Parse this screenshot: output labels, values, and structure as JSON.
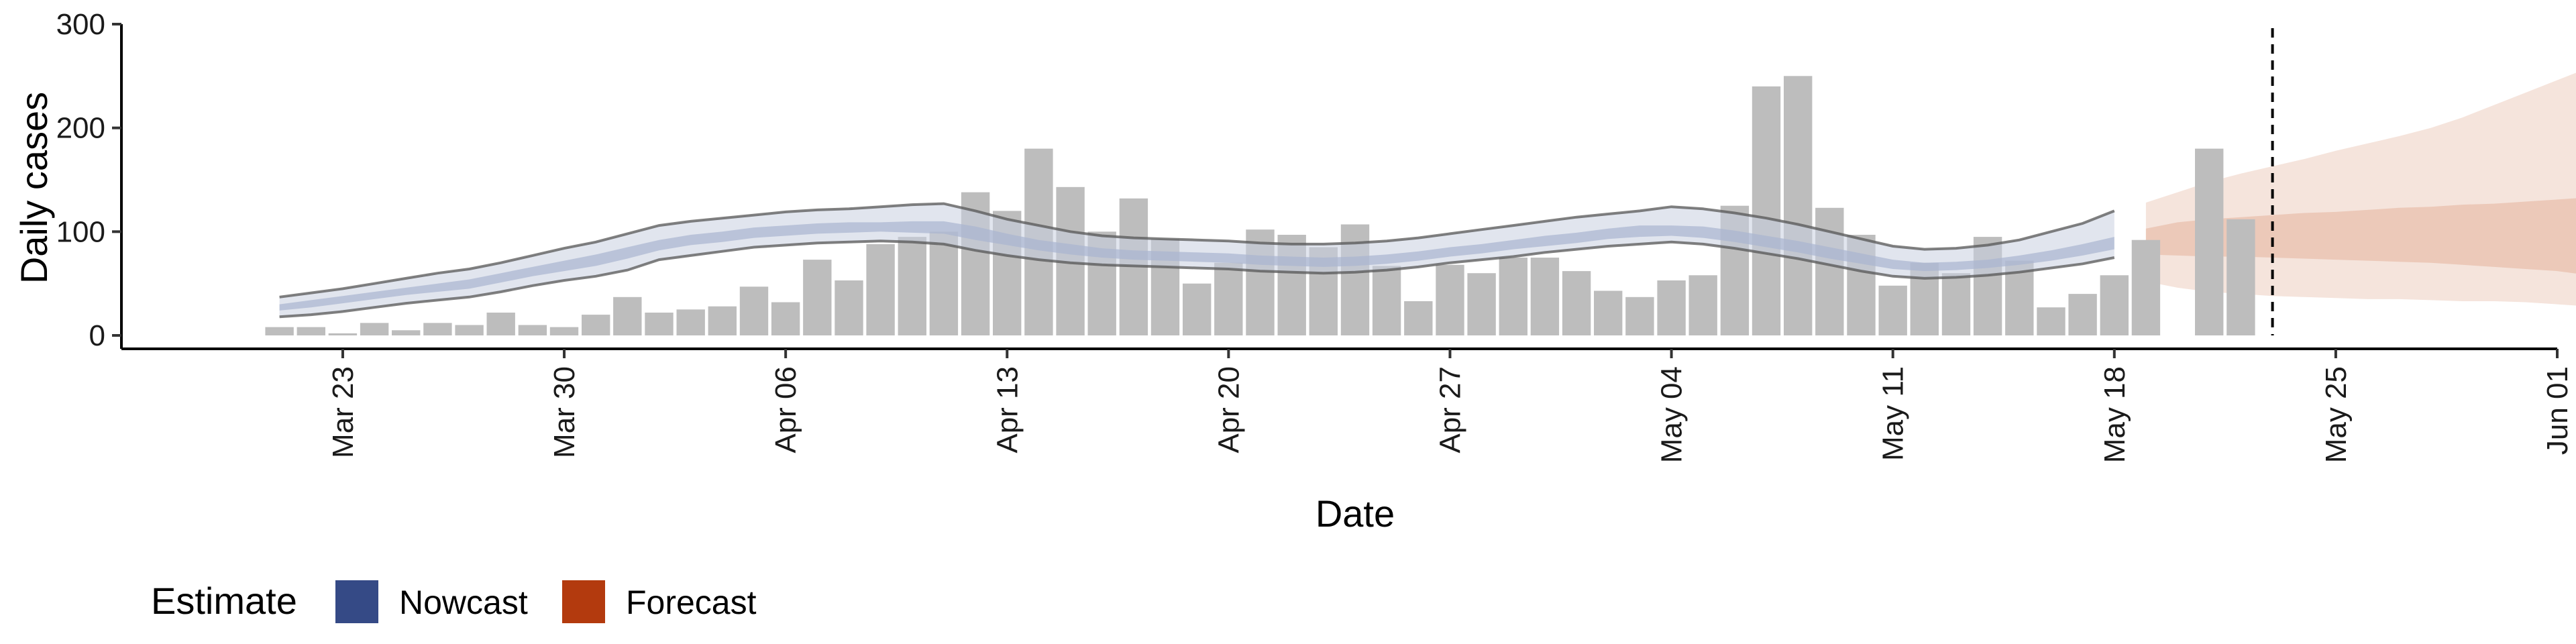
{
  "chart_data": {
    "type": "bar",
    "xlabel": "Date",
    "ylabel": "Daily cases",
    "ylim": [
      0,
      300
    ],
    "xlim": [
      "2020-03-17",
      "2020-06-01"
    ],
    "y_ticks": [
      0,
      100,
      200,
      300
    ],
    "x_ticks": [
      "Mar 23",
      "Mar 30",
      "Apr 06",
      "Apr 13",
      "Apr 20",
      "Apr 27",
      "May 04",
      "May 11",
      "May 18",
      "May 25",
      "Jun 01"
    ],
    "x_tick_dates": [
      "2020-03-23",
      "2020-03-30",
      "2020-04-06",
      "2020-04-13",
      "2020-04-20",
      "2020-04-27",
      "2020-05-04",
      "2020-05-11",
      "2020-05-18",
      "2020-05-25",
      "2020-06-01"
    ],
    "grid": false,
    "reference_line": {
      "date": "2020-05-23",
      "style": "dashed"
    },
    "reported_cases": {
      "start_date": "2020-03-21",
      "values": [
        8,
        8,
        2,
        12,
        5,
        12,
        10,
        22,
        10,
        8,
        20,
        37,
        22,
        25,
        28,
        47,
        32,
        73,
        53,
        88,
        95,
        100,
        138,
        120,
        180,
        143,
        100,
        132,
        93,
        50,
        70,
        102,
        97,
        85,
        107,
        67,
        33,
        68,
        60,
        75,
        75,
        62,
        43,
        37,
        53,
        58,
        125,
        240,
        250,
        123,
        97,
        48,
        70,
        60,
        95,
        72,
        27,
        40,
        58,
        92,
        null,
        180,
        112
      ]
    },
    "nowcast": {
      "start_date": "2020-03-21",
      "outer_upper": [
        37,
        41,
        45,
        50,
        55,
        60,
        64,
        70,
        77,
        84,
        90,
        98,
        106,
        110,
        113,
        116,
        119,
        121,
        122,
        124,
        126,
        127,
        120,
        112,
        106,
        100,
        96,
        94,
        93,
        92,
        91,
        89,
        88,
        88,
        89,
        91,
        94,
        98,
        102,
        106,
        110,
        114,
        117,
        120,
        124,
        122,
        118,
        113,
        107,
        100,
        93,
        86,
        83,
        84,
        87,
        92,
        100,
        108,
        120
      ],
      "outer_lower": [
        18,
        20,
        23,
        27,
        31,
        34,
        37,
        42,
        48,
        53,
        57,
        63,
        73,
        77,
        81,
        85,
        87,
        89,
        90,
        91,
        90,
        88,
        82,
        77,
        73,
        70,
        68,
        67,
        66,
        65,
        64,
        62,
        61,
        60,
        61,
        63,
        66,
        70,
        73,
        76,
        80,
        83,
        86,
        88,
        90,
        88,
        84,
        79,
        74,
        68,
        62,
        57,
        55,
        56,
        58,
        61,
        65,
        69,
        75
      ],
      "inner_upper": [
        30,
        34,
        38,
        42,
        46,
        50,
        54,
        60,
        66,
        72,
        78,
        85,
        92,
        97,
        100,
        104,
        106,
        108,
        109,
        109,
        110,
        110,
        105,
        98,
        92,
        88,
        84,
        82,
        81,
        80,
        79,
        77,
        76,
        75,
        76,
        78,
        81,
        85,
        88,
        92,
        96,
        99,
        103,
        106,
        106,
        105,
        101,
        96,
        91,
        85,
        79,
        73,
        70,
        71,
        73,
        77,
        82,
        88,
        95
      ],
      "inner_lower": [
        24,
        27,
        31,
        35,
        39,
        42,
        45,
        51,
        57,
        62,
        67,
        74,
        82,
        87,
        90,
        94,
        96,
        98,
        99,
        100,
        99,
        98,
        92,
        87,
        82,
        78,
        75,
        73,
        72,
        71,
        70,
        68,
        67,
        66,
        67,
        69,
        72,
        76,
        79,
        83,
        86,
        89,
        93,
        95,
        96,
        94,
        90,
        85,
        80,
        74,
        69,
        64,
        62,
        63,
        65,
        68,
        72,
        77,
        83
      ]
    },
    "forecast": {
      "start_date": "2020-05-19",
      "outer_upper": [
        128,
        138,
        148,
        156,
        163,
        170,
        178,
        185,
        192,
        200,
        210,
        222,
        234,
        246,
        258,
        272,
        288
      ],
      "outer_lower": [
        52,
        46,
        42,
        40,
        38,
        37,
        36,
        35,
        35,
        34,
        33,
        33,
        32,
        30,
        28,
        24,
        20
      ],
      "inner_upper": [
        103,
        109,
        112,
        114,
        116,
        118,
        119,
        121,
        123,
        124,
        126,
        127,
        129,
        131,
        133,
        134,
        136
      ],
      "inner_lower": [
        78,
        77,
        76,
        76,
        75,
        74,
        73,
        72,
        71,
        70,
        68,
        66,
        64,
        62,
        58,
        53,
        48
      ]
    },
    "legend": {
      "position": "bottom-left",
      "title": "Estimate",
      "entries": [
        {
          "label": "Nowcast",
          "color": "#354a86"
        },
        {
          "label": "Forecast",
          "color": "#b33a0e"
        }
      ]
    },
    "colors": {
      "bar": "#bdbdbd",
      "nowcast_outer": "#c9d0e0",
      "nowcast_inner": "#a9b5d0",
      "nowcast_line": "#555555",
      "forecast_outer": "#f5e4dc",
      "forecast_inner": "#ecc9b9",
      "forecast_bar": "#b2a7a2"
    }
  }
}
